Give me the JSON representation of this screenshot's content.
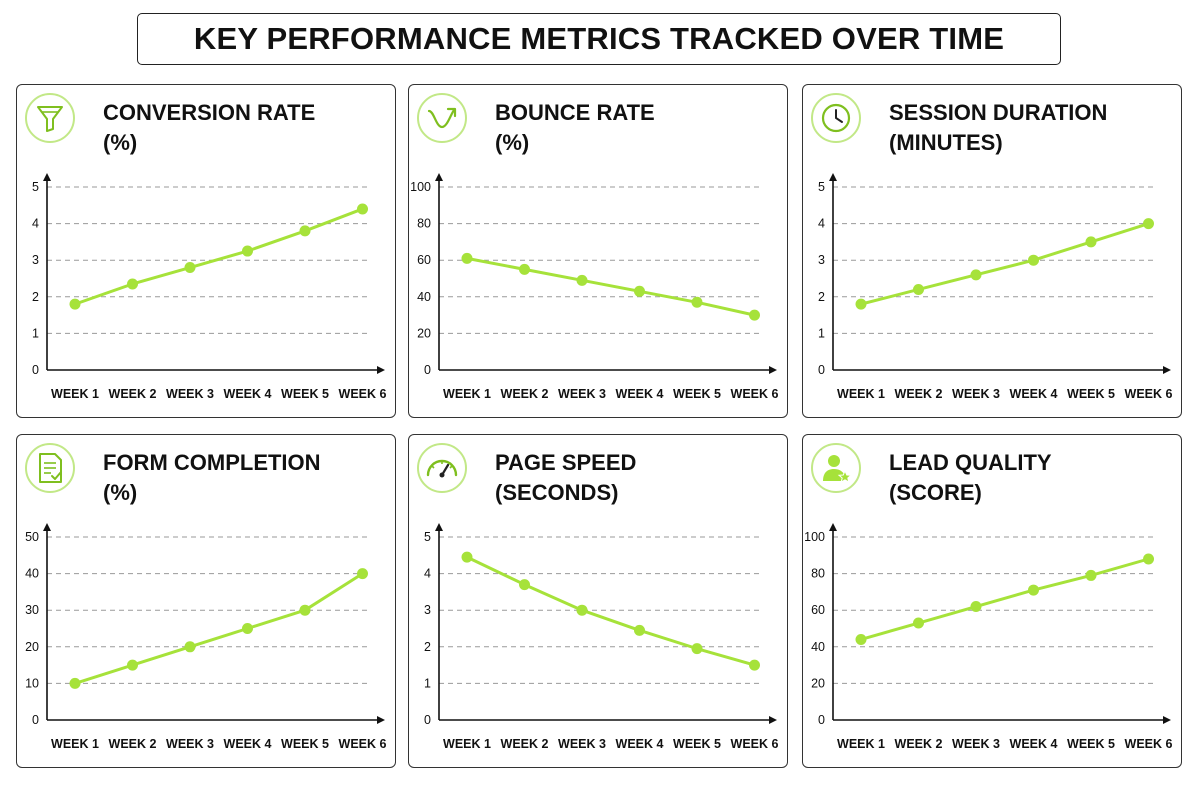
{
  "title": "KEY PERFORMANCE METRICS TRACKED OVER TIME",
  "colors": {
    "line": "#a6e23a",
    "point": "#a6e23a",
    "icon": "#7fbf1f",
    "icon_ring": "#c2e887"
  },
  "chart_data": [
    {
      "type": "line",
      "title": "CONVERSION RATE",
      "unit": "(%)",
      "icon": "funnel-icon",
      "categories": [
        "WEEK 1",
        "WEEK 2",
        "WEEK 3",
        "WEEK 4",
        "WEEK 5",
        "WEEK 6"
      ],
      "values": [
        1.8,
        2.35,
        2.8,
        3.25,
        3.8,
        4.4
      ],
      "yticks": [
        "0",
        "1",
        "2",
        "3",
        "4",
        "5"
      ],
      "ylim": [
        0,
        5
      ],
      "grid": true
    },
    {
      "type": "line",
      "title": "BOUNCE RATE",
      "unit": "(%)",
      "icon": "bounce-arrow-icon",
      "categories": [
        "WEEK 1",
        "WEEK 2",
        "WEEK 3",
        "WEEK 4",
        "WEEK 5",
        "WEEK 6"
      ],
      "values": [
        61,
        55,
        49,
        43,
        37,
        30
      ],
      "yticks": [
        "0",
        "20",
        "40",
        "60",
        "80",
        "100"
      ],
      "ylim": [
        0,
        100
      ],
      "grid": true
    },
    {
      "type": "line",
      "title": "SESSION DURATION",
      "unit": "(MINUTES)",
      "icon": "clock-icon",
      "categories": [
        "WEEK 1",
        "WEEK 2",
        "WEEK 3",
        "WEEK 4",
        "WEEK 5",
        "WEEK 6"
      ],
      "values": [
        1.8,
        2.2,
        2.6,
        3.0,
        3.5,
        4.0
      ],
      "yticks": [
        "0",
        "1",
        "2",
        "3",
        "4",
        "5"
      ],
      "ylim": [
        0,
        5
      ],
      "grid": true
    },
    {
      "type": "line",
      "title": "FORM COMPLETION",
      "unit": "(%)",
      "icon": "document-check-icon",
      "categories": [
        "WEEK 1",
        "WEEK 2",
        "WEEK 3",
        "WEEK 4",
        "WEEK 5",
        "WEEK 6"
      ],
      "values": [
        10,
        15,
        20,
        25,
        30,
        40
      ],
      "yticks": [
        "0",
        "10",
        "20",
        "30",
        "40",
        "50"
      ],
      "ylim": [
        0,
        50
      ],
      "grid": true
    },
    {
      "type": "line",
      "title": "PAGE SPEED",
      "unit": "(SECONDS)",
      "icon": "speedometer-icon",
      "categories": [
        "WEEK 1",
        "WEEK 2",
        "WEEK 3",
        "WEEK 4",
        "WEEK 5",
        "WEEK 6"
      ],
      "values": [
        4.45,
        3.7,
        3.0,
        2.45,
        1.95,
        1.5
      ],
      "yticks": [
        "0",
        "1",
        "2",
        "3",
        "4",
        "5"
      ],
      "ylim": [
        0,
        5
      ],
      "grid": true
    },
    {
      "type": "line",
      "title": "LEAD QUALITY",
      "unit": "(SCORE)",
      "icon": "user-star-icon",
      "categories": [
        "WEEK 1",
        "WEEK 2",
        "WEEK 3",
        "WEEK 4",
        "WEEK 5",
        "WEEK 6"
      ],
      "values": [
        44,
        53,
        62,
        71,
        79,
        88
      ],
      "yticks": [
        "0",
        "20",
        "40",
        "60",
        "80",
        "100"
      ],
      "ylim": [
        0,
        100
      ],
      "grid": true
    }
  ]
}
